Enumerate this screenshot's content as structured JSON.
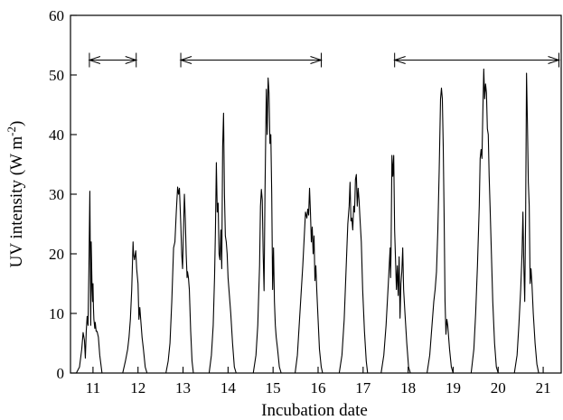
{
  "chart_data": {
    "type": "line",
    "xlabel": "Incubation date",
    "ylabel": "UV intensity (W m",
    "ylabel_superscript": "-2",
    "ylabel_close": ")",
    "xlim": [
      10.5,
      21.4
    ],
    "ylim": [
      0,
      60
    ],
    "x_ticks": [
      11,
      12,
      13,
      14,
      15,
      16,
      17,
      18,
      19,
      20,
      21
    ],
    "x_tick_labels": [
      "11",
      "12",
      "13",
      "14",
      "15",
      "16",
      "17",
      "18",
      "19",
      "20",
      "21"
    ],
    "y_ticks": [
      0,
      10,
      20,
      30,
      40,
      50,
      60
    ],
    "y_tick_labels": [
      "0",
      "10",
      "20",
      "30",
      "40",
      "50",
      "60"
    ],
    "grid": false,
    "series": [
      {
        "points": [
          [
            10.5,
            0
          ],
          [
            10.63,
            0
          ],
          [
            10.7,
            1
          ],
          [
            10.75,
            4
          ],
          [
            10.78,
            6.8
          ],
          [
            10.81,
            5.5
          ],
          [
            10.83,
            2.5
          ],
          [
            10.85,
            7
          ],
          [
            10.87,
            9.5
          ],
          [
            10.89,
            8
          ],
          [
            10.91,
            18
          ],
          [
            10.93,
            30.5
          ],
          [
            10.94,
            20
          ],
          [
            10.95,
            8
          ],
          [
            10.96,
            22
          ],
          [
            10.98,
            14
          ],
          [
            10.99,
            12
          ],
          [
            11.0,
            15
          ],
          [
            11.01,
            11
          ],
          [
            11.02,
            9
          ],
          [
            11.04,
            7.5
          ],
          [
            11.05,
            8.5
          ],
          [
            11.07,
            7
          ],
          [
            11.09,
            7
          ],
          [
            11.12,
            6
          ],
          [
            11.15,
            3
          ],
          [
            11.2,
            0
          ],
          [
            11.66,
            0
          ],
          [
            11.72,
            2
          ],
          [
            11.77,
            4
          ],
          [
            11.8,
            6
          ],
          [
            11.83,
            9
          ],
          [
            11.86,
            14
          ],
          [
            11.89,
            22
          ],
          [
            11.9,
            20
          ],
          [
            11.92,
            19
          ],
          [
            11.95,
            20.5
          ],
          [
            11.97,
            17.5
          ],
          [
            12.0,
            15
          ],
          [
            12.02,
            9
          ],
          [
            12.04,
            11
          ],
          [
            12.06,
            9
          ],
          [
            12.09,
            6
          ],
          [
            12.12,
            4
          ],
          [
            12.16,
            1
          ],
          [
            12.2,
            0
          ],
          [
            12.62,
            0
          ],
          [
            12.67,
            2
          ],
          [
            12.71,
            5
          ],
          [
            12.75,
            12
          ],
          [
            12.79,
            21
          ],
          [
            12.82,
            22
          ],
          [
            12.85,
            27
          ],
          [
            12.88,
            31.2
          ],
          [
            12.9,
            30
          ],
          [
            12.92,
            31
          ],
          [
            12.95,
            25
          ],
          [
            12.97,
            20
          ],
          [
            12.99,
            17.5
          ],
          [
            13.01,
            24
          ],
          [
            13.03,
            30
          ],
          [
            13.05,
            26
          ],
          [
            13.07,
            20
          ],
          [
            13.09,
            16
          ],
          [
            13.1,
            17
          ],
          [
            13.12,
            16
          ],
          [
            13.14,
            14
          ],
          [
            13.17,
            7
          ],
          [
            13.2,
            2
          ],
          [
            13.23,
            0
          ],
          [
            13.58,
            0
          ],
          [
            13.63,
            3
          ],
          [
            13.67,
            8
          ],
          [
            13.7,
            16
          ],
          [
            13.72,
            24
          ],
          [
            13.74,
            35.3
          ],
          [
            13.76,
            27
          ],
          [
            13.78,
            28.5
          ],
          [
            13.8,
            20
          ],
          [
            13.82,
            19
          ],
          [
            13.84,
            24
          ],
          [
            13.86,
            17.5
          ],
          [
            13.88,
            38
          ],
          [
            13.9,
            43.6
          ],
          [
            13.92,
            30
          ],
          [
            13.94,
            23
          ],
          [
            13.96,
            22
          ],
          [
            13.98,
            20
          ],
          [
            14.0,
            16
          ],
          [
            14.03,
            13
          ],
          [
            14.06,
            10
          ],
          [
            14.1,
            5
          ],
          [
            14.14,
            1
          ],
          [
            14.18,
            0
          ],
          [
            14.56,
            0
          ],
          [
            14.62,
            3
          ],
          [
            14.66,
            8
          ],
          [
            14.7,
            18
          ],
          [
            14.72,
            28
          ],
          [
            14.74,
            30.8
          ],
          [
            14.76,
            29
          ],
          [
            14.78,
            20
          ],
          [
            14.8,
            13.8
          ],
          [
            14.82,
            30
          ],
          [
            14.85,
            47.6
          ],
          [
            14.87,
            40
          ],
          [
            14.89,
            49.5
          ],
          [
            14.91,
            47
          ],
          [
            14.93,
            38.5
          ],
          [
            14.95,
            40
          ],
          [
            14.97,
            30
          ],
          [
            14.99,
            14
          ],
          [
            15.01,
            21
          ],
          [
            15.03,
            12
          ],
          [
            15.05,
            8
          ],
          [
            15.07,
            6
          ],
          [
            15.1,
            4
          ],
          [
            15.14,
            1
          ],
          [
            15.18,
            0
          ],
          [
            15.49,
            0
          ],
          [
            15.54,
            3
          ],
          [
            15.58,
            8
          ],
          [
            15.62,
            13
          ],
          [
            15.66,
            18
          ],
          [
            15.7,
            24
          ],
          [
            15.72,
            27
          ],
          [
            15.75,
            26
          ],
          [
            15.77,
            27.5
          ],
          [
            15.79,
            26.5
          ],
          [
            15.81,
            31
          ],
          [
            15.83,
            27
          ],
          [
            15.85,
            22
          ],
          [
            15.87,
            24.5
          ],
          [
            15.89,
            20
          ],
          [
            15.91,
            23
          ],
          [
            15.93,
            15.5
          ],
          [
            15.95,
            18
          ],
          [
            15.97,
            14
          ],
          [
            16.0,
            9
          ],
          [
            16.03,
            4
          ],
          [
            16.07,
            1
          ],
          [
            16.1,
            0
          ],
          [
            16.47,
            0
          ],
          [
            16.53,
            3
          ],
          [
            16.58,
            9
          ],
          [
            16.62,
            17
          ],
          [
            16.66,
            25
          ],
          [
            16.69,
            28
          ],
          [
            16.71,
            32
          ],
          [
            16.73,
            25.5
          ],
          [
            16.75,
            26
          ],
          [
            16.77,
            24
          ],
          [
            16.79,
            28
          ],
          [
            16.81,
            27
          ],
          [
            16.83,
            32.5
          ],
          [
            16.85,
            33.3
          ],
          [
            16.87,
            28
          ],
          [
            16.89,
            31
          ],
          [
            16.91,
            29
          ],
          [
            16.93,
            26
          ],
          [
            16.96,
            22
          ],
          [
            16.99,
            14
          ],
          [
            17.03,
            7
          ],
          [
            17.07,
            2
          ],
          [
            17.1,
            0
          ],
          [
            17.4,
            0
          ],
          [
            17.46,
            3
          ],
          [
            17.51,
            8
          ],
          [
            17.56,
            15
          ],
          [
            17.6,
            21
          ],
          [
            17.61,
            16
          ],
          [
            17.62,
            20
          ],
          [
            17.64,
            36.5
          ],
          [
            17.66,
            33
          ],
          [
            17.68,
            36.5
          ],
          [
            17.7,
            24
          ],
          [
            17.72,
            19
          ],
          [
            17.74,
            14
          ],
          [
            17.76,
            18
          ],
          [
            17.78,
            13
          ],
          [
            17.8,
            19.5
          ],
          [
            17.82,
            9.2
          ],
          [
            17.84,
            15
          ],
          [
            17.86,
            17
          ],
          [
            17.88,
            21
          ],
          [
            17.9,
            14
          ],
          [
            17.93,
            10
          ],
          [
            17.97,
            5
          ],
          [
            18.01,
            1
          ],
          [
            18.05,
            0
          ],
          [
            18.42,
            0
          ],
          [
            18.48,
            3
          ],
          [
            18.53,
            8
          ],
          [
            18.57,
            12
          ],
          [
            18.6,
            14
          ],
          [
            18.63,
            17
          ],
          [
            18.66,
            24
          ],
          [
            18.69,
            34
          ],
          [
            18.72,
            46
          ],
          [
            18.74,
            47.8
          ],
          [
            18.76,
            46
          ],
          [
            18.78,
            38
          ],
          [
            18.8,
            26
          ],
          [
            18.82,
            12
          ],
          [
            18.84,
            6.5
          ],
          [
            18.86,
            9
          ],
          [
            18.88,
            8
          ],
          [
            18.92,
            4
          ],
          [
            18.96,
            1
          ],
          [
            19.0,
            0
          ],
          [
            19.4,
            0
          ],
          [
            19.46,
            4
          ],
          [
            19.5,
            10
          ],
          [
            19.54,
            18
          ],
          [
            19.58,
            28
          ],
          [
            19.6,
            36
          ],
          [
            19.62,
            37.5
          ],
          [
            19.64,
            36
          ],
          [
            19.66,
            44
          ],
          [
            19.68,
            51
          ],
          [
            19.7,
            46
          ],
          [
            19.72,
            48.5
          ],
          [
            19.74,
            47
          ],
          [
            19.76,
            41
          ],
          [
            19.78,
            40
          ],
          [
            19.8,
            33
          ],
          [
            19.82,
            28
          ],
          [
            19.85,
            20
          ],
          [
            19.88,
            12
          ],
          [
            19.92,
            5
          ],
          [
            19.96,
            1
          ],
          [
            20.0,
            0
          ],
          [
            20.36,
            0
          ],
          [
            20.42,
            3
          ],
          [
            20.46,
            8
          ],
          [
            20.5,
            14
          ],
          [
            20.53,
            20
          ],
          [
            20.55,
            27
          ],
          [
            20.57,
            18
          ],
          [
            20.59,
            12
          ],
          [
            20.61,
            26
          ],
          [
            20.63,
            50.3
          ],
          [
            20.65,
            42
          ],
          [
            20.67,
            32
          ],
          [
            20.69,
            28
          ],
          [
            20.71,
            15
          ],
          [
            20.73,
            17.5
          ],
          [
            20.75,
            15
          ],
          [
            20.78,
            10
          ],
          [
            20.82,
            5
          ],
          [
            20.86,
            1.5
          ],
          [
            20.9,
            0
          ],
          [
            21.4,
            0
          ]
        ]
      }
    ],
    "annotations": [
      {
        "type": "double-arrow",
        "x_start": 10.92,
        "x_end": 11.96,
        "y": 52.5
      },
      {
        "type": "double-arrow",
        "x_start": 12.95,
        "x_end": 16.07,
        "y": 52.5
      },
      {
        "type": "double-arrow",
        "x_start": 17.7,
        "x_end": 21.35,
        "y": 52.5
      }
    ]
  }
}
